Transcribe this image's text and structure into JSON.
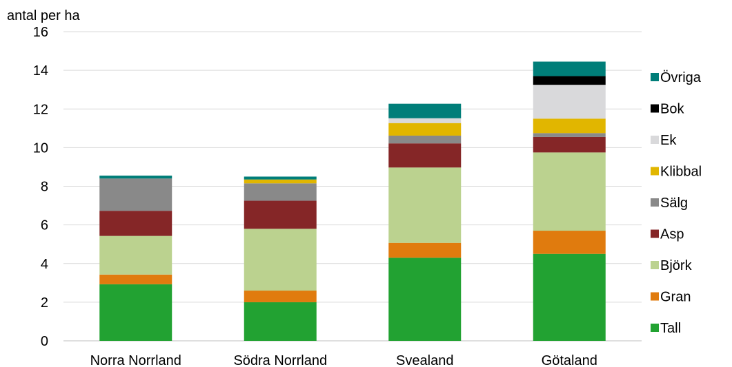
{
  "chart_data": {
    "type": "bar",
    "stacked": true,
    "ylabel": "antal per ha",
    "ylim": [
      0,
      16
    ],
    "yticks": [
      0,
      2,
      4,
      6,
      8,
      10,
      12,
      14,
      16
    ],
    "grid": true,
    "legend_position": "right",
    "categories": [
      "Norra Norrland",
      "Södra Norrland",
      "Svealand",
      "Götaland"
    ],
    "series": [
      {
        "name": "Tall",
        "color": "#22a232",
        "values": [
          2.93,
          2.0,
          4.3,
          4.5
        ]
      },
      {
        "name": "Gran",
        "color": "#e07b0e",
        "values": [
          0.5,
          0.6,
          0.77,
          1.2
        ]
      },
      {
        "name": "Björk",
        "color": "#bbd28f",
        "values": [
          2.0,
          3.2,
          3.9,
          4.05
        ]
      },
      {
        "name": "Asp",
        "color": "#852627",
        "values": [
          1.3,
          1.45,
          1.25,
          0.8
        ]
      },
      {
        "name": "Sälg",
        "color": "#898989",
        "values": [
          1.67,
          0.9,
          0.4,
          0.2
        ]
      },
      {
        "name": "Klibbal",
        "color": "#e1b600",
        "values": [
          0.0,
          0.2,
          0.65,
          0.75
        ]
      },
      {
        "name": "Ek",
        "color": "#d9d9db",
        "values": [
          0.0,
          0.0,
          0.25,
          1.75
        ]
      },
      {
        "name": "Bok",
        "color": "#000000",
        "values": [
          0.0,
          0.0,
          0.0,
          0.45
        ]
      },
      {
        "name": "Övriga",
        "color": "#007e79",
        "values": [
          0.15,
          0.15,
          0.75,
          0.75
        ]
      }
    ]
  }
}
